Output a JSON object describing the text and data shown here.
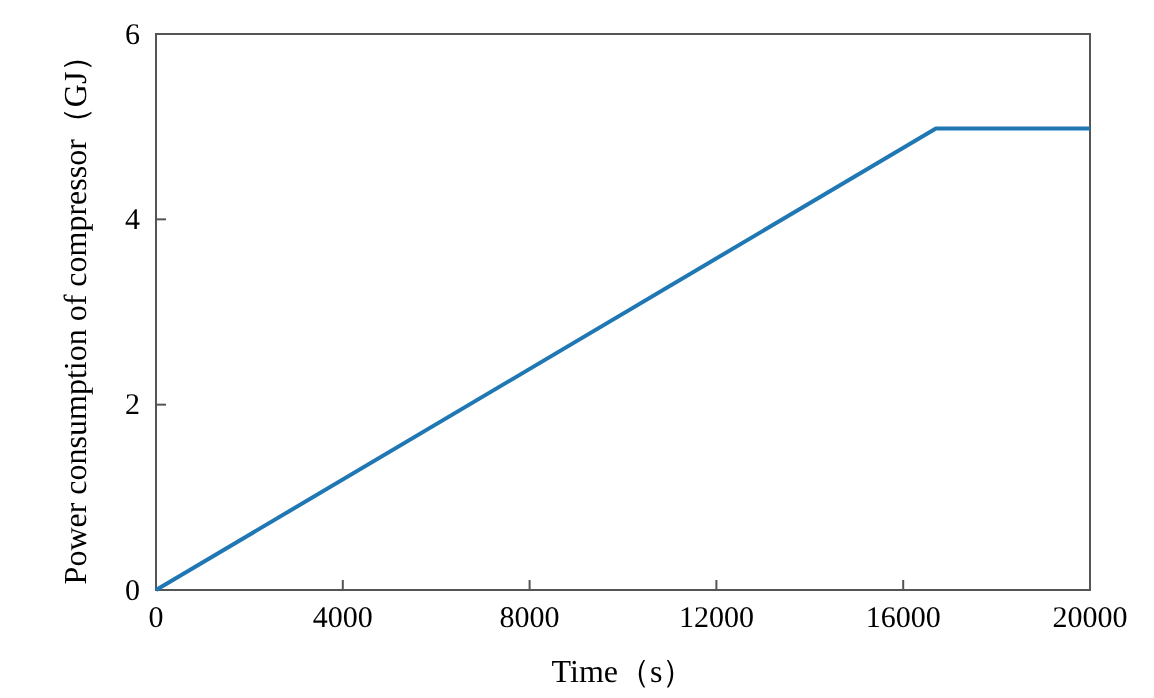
{
  "chart_data": {
    "type": "line",
    "xlabel": "Time（s）",
    "ylabel": "Power consumption of compressor（GJ）",
    "x": [
      0,
      16700,
      20000
    ],
    "series": [
      {
        "color": "#1f77b4",
        "values": [
          0,
          4.98,
          4.98
        ]
      }
    ],
    "xlim": [
      0,
      20000
    ],
    "xticks": [
      0,
      4000,
      8000,
      12000,
      16000,
      20000
    ],
    "ylim": [
      0,
      6
    ],
    "yticks": [
      0,
      2,
      4,
      6
    ],
    "grid": false,
    "marker": "none",
    "line_style": "solid"
  }
}
